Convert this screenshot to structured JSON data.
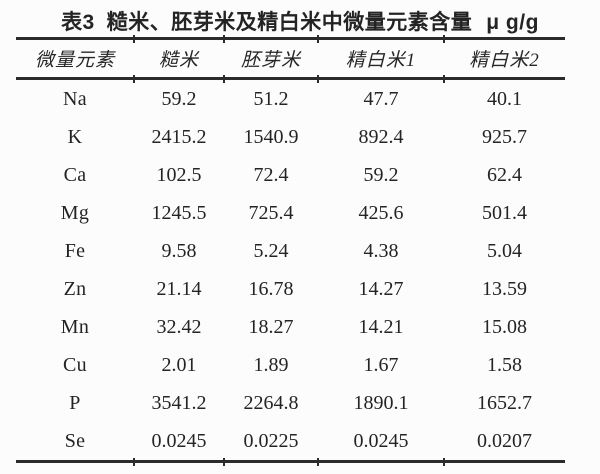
{
  "page": {
    "background_color": "#fcfcfc",
    "text_color": "#242424",
    "rule_color": "#2b2b2b"
  },
  "title": {
    "label": "表3",
    "text": "糙米、胚芽米及精白米中微量元素含量",
    "unit": "μ g/g"
  },
  "table": {
    "headers": [
      "微量元素",
      "糙米",
      "胚芽米",
      "精白米1",
      "精白米2"
    ],
    "rows": [
      {
        "element": "Na",
        "values": [
          "59.2",
          "51.2",
          "47.7",
          "40.1"
        ]
      },
      {
        "element": "K",
        "values": [
          "2415.2",
          "1540.9",
          "892.4",
          "925.7"
        ]
      },
      {
        "element": "Ca",
        "values": [
          "102.5",
          "72.4",
          "59.2",
          "62.4"
        ]
      },
      {
        "element": "Mg",
        "values": [
          "1245.5",
          "725.4",
          "425.6",
          "501.4"
        ]
      },
      {
        "element": "Fe",
        "values": [
          "9.58",
          "5.24",
          "4.38",
          "5.04"
        ]
      },
      {
        "element": "Zn",
        "values": [
          "21.14",
          "16.78",
          "14.27",
          "13.59"
        ]
      },
      {
        "element": "Mn",
        "values": [
          "32.42",
          "18.27",
          "14.21",
          "15.08"
        ]
      },
      {
        "element": "Cu",
        "values": [
          "2.01",
          "1.89",
          "1.67",
          "1.58"
        ]
      },
      {
        "element": "P",
        "values": [
          "3541.2",
          "2264.8",
          "1890.1",
          "1652.7"
        ]
      },
      {
        "element": "Se",
        "values": [
          "0.0245",
          "0.0225",
          "0.0245",
          "0.0207"
        ]
      }
    ]
  },
  "chart_data": {
    "type": "table",
    "title": "表3 糙米、胚芽米及精白米中微量元素含量",
    "unit": "μ g/g",
    "columns": [
      "微量元素",
      "糙米",
      "胚芽米",
      "精白米1",
      "精白米2"
    ],
    "records": [
      [
        "Na",
        59.2,
        51.2,
        47.7,
        40.1
      ],
      [
        "K",
        2415.2,
        1540.9,
        892.4,
        925.7
      ],
      [
        "Ca",
        102.5,
        72.4,
        59.2,
        62.4
      ],
      [
        "Mg",
        1245.5,
        725.4,
        425.6,
        501.4
      ],
      [
        "Fe",
        9.58,
        5.24,
        4.38,
        5.04
      ],
      [
        "Zn",
        21.14,
        16.78,
        14.27,
        13.59
      ],
      [
        "Mn",
        32.42,
        18.27,
        14.21,
        15.08
      ],
      [
        "Cu",
        2.01,
        1.89,
        1.67,
        1.58
      ],
      [
        "P",
        3541.2,
        2264.8,
        1890.1,
        1652.7
      ],
      [
        "Se",
        0.0245,
        0.0225,
        0.0245,
        0.0207
      ]
    ]
  }
}
